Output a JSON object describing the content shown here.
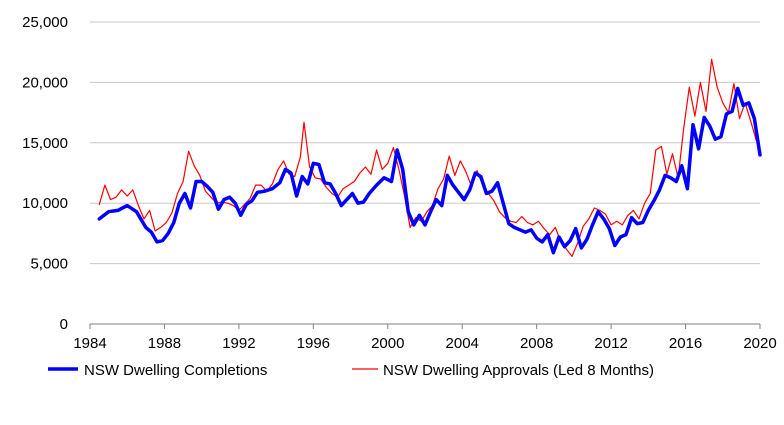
{
  "chart_data": {
    "type": "line",
    "title": "",
    "xlabel": "",
    "ylabel": "",
    "xlim": [
      1984,
      2020
    ],
    "ylim": [
      0,
      25000
    ],
    "x_ticks": [
      "1984",
      "1988",
      "1992",
      "1996",
      "2000",
      "2004",
      "2008",
      "2012",
      "2016",
      "2020"
    ],
    "y_ticks": [
      "0",
      "5,000",
      "10,000",
      "15,000",
      "20,000",
      "25,000"
    ],
    "grid": "horizontal",
    "legend_position": "bottom",
    "series": [
      {
        "name": "NSW Dwelling Completions",
        "color": "#0000ff",
        "style": "thick",
        "x": [
          1984.5,
          1985.0,
          1985.5,
          1986.0,
          1986.5,
          1987.0,
          1987.3,
          1987.6,
          1987.9,
          1988.2,
          1988.5,
          1988.8,
          1989.1,
          1989.4,
          1989.7,
          1990.0,
          1990.3,
          1990.6,
          1990.9,
          1991.2,
          1991.5,
          1991.8,
          1992.1,
          1992.4,
          1992.7,
          1993.0,
          1993.4,
          1993.8,
          1994.2,
          1994.5,
          1994.8,
          1995.1,
          1995.4,
          1995.7,
          1996.0,
          1996.3,
          1996.6,
          1996.9,
          1997.2,
          1997.5,
          1997.8,
          1998.1,
          1998.4,
          1998.7,
          1999.0,
          1999.4,
          1999.8,
          2000.2,
          2000.5,
          2000.8,
          2001.1,
          2001.4,
          2001.7,
          2002.0,
          2002.3,
          2002.6,
          2002.9,
          2003.2,
          2003.5,
          2003.8,
          2004.1,
          2004.4,
          2004.7,
          2005.0,
          2005.3,
          2005.6,
          2005.9,
          2006.2,
          2006.5,
          2006.8,
          2007.1,
          2007.4,
          2007.7,
          2008.0,
          2008.3,
          2008.6,
          2008.9,
          2009.2,
          2009.5,
          2009.8,
          2010.1,
          2010.4,
          2010.7,
          2011.0,
          2011.3,
          2011.6,
          2011.9,
          2012.2,
          2012.5,
          2012.8,
          2013.1,
          2013.4,
          2013.7,
          2014.0,
          2014.3,
          2014.6,
          2014.9,
          2015.2,
          2015.5,
          2015.8,
          2016.1,
          2016.4,
          2016.7,
          2017.0,
          2017.3,
          2017.6,
          2017.9,
          2018.2,
          2018.5,
          2018.8,
          2019.1,
          2019.4,
          2019.7,
          2020.0
        ],
        "values": [
          8700,
          9300,
          9400,
          9800,
          9300,
          8000,
          7600,
          6800,
          6900,
          7500,
          8400,
          10000,
          10800,
          9600,
          11800,
          11800,
          11400,
          10900,
          9500,
          10300,
          10500,
          10000,
          9000,
          9900,
          10200,
          10900,
          11000,
          11200,
          11700,
          12800,
          12500,
          10600,
          12200,
          11600,
          13300,
          13200,
          11700,
          11600,
          10800,
          9800,
          10300,
          10800,
          10000,
          10100,
          10800,
          11500,
          12100,
          11800,
          14400,
          12800,
          9300,
          8200,
          9000,
          8200,
          9300,
          10300,
          9800,
          12300,
          11500,
          10900,
          10300,
          11100,
          12500,
          12200,
          10800,
          11000,
          11700,
          10000,
          8300,
          8000,
          7800,
          7600,
          7800,
          7100,
          6800,
          7400,
          5900,
          7200,
          6400,
          6900,
          7900,
          6300,
          7000,
          8200,
          9300,
          8700,
          7900,
          6500,
          7200,
          7400,
          8800,
          8300,
          8400,
          9400,
          10200,
          11100,
          12300,
          12100,
          11800,
          13100,
          11200,
          16500,
          14500,
          17100,
          16400,
          15300,
          15500,
          17400,
          17600,
          19500,
          18100,
          18300,
          17000,
          14000
        ]
      },
      {
        "name": "NSW Dwelling Approvals (Led 8 Months)",
        "color": "#ff0000",
        "style": "thin",
        "x": [
          1984.5,
          1984.8,
          1985.1,
          1985.4,
          1985.7,
          1986.0,
          1986.3,
          1986.6,
          1986.9,
          1987.2,
          1987.5,
          1987.8,
          1988.1,
          1988.4,
          1988.7,
          1989.0,
          1989.3,
          1989.6,
          1989.9,
          1990.2,
          1990.5,
          1990.8,
          1991.1,
          1991.4,
          1991.7,
          1992.0,
          1992.3,
          1992.6,
          1992.9,
          1993.2,
          1993.5,
          1993.8,
          1994.1,
          1994.4,
          1994.7,
          1995.0,
          1995.3,
          1995.5,
          1995.8,
          1996.1,
          1996.4,
          1996.7,
          1997.0,
          1997.3,
          1997.6,
          1997.9,
          1998.2,
          1998.5,
          1998.8,
          1999.1,
          1999.4,
          1999.7,
          2000.0,
          2000.3,
          2000.6,
          2000.9,
          2001.2,
          2001.5,
          2001.8,
          2002.1,
          2002.4,
          2002.7,
          2003.0,
          2003.3,
          2003.6,
          2003.9,
          2004.2,
          2004.5,
          2004.8,
          2005.1,
          2005.4,
          2005.7,
          2006.0,
          2006.3,
          2006.6,
          2006.9,
          2007.2,
          2007.5,
          2007.8,
          2008.1,
          2008.4,
          2008.7,
          2009.0,
          2009.3,
          2009.6,
          2009.9,
          2010.2,
          2010.5,
          2010.8,
          2011.1,
          2011.4,
          2011.7,
          2012.0,
          2012.3,
          2012.6,
          2012.9,
          2013.2,
          2013.5,
          2013.8,
          2014.1,
          2014.4,
          2014.7,
          2015.0,
          2015.3,
          2015.6,
          2015.9,
          2016.2,
          2016.5,
          2016.8,
          2017.1,
          2017.4,
          2017.7,
          2018.0,
          2018.3,
          2018.6,
          2018.9,
          2019.2,
          2019.5,
          2019.8
        ],
        "values": [
          9900,
          11500,
          10300,
          10500,
          11100,
          10600,
          11100,
          9800,
          8700,
          9400,
          7700,
          8000,
          8400,
          9200,
          10800,
          11800,
          14300,
          13100,
          12300,
          11000,
          10500,
          10000,
          10100,
          10000,
          9800,
          9400,
          9900,
          10400,
          11500,
          11500,
          11000,
          11600,
          12800,
          13500,
          12400,
          12200,
          13800,
          16700,
          13000,
          12100,
          12000,
          11300,
          10800,
          10500,
          11200,
          11500,
          11800,
          12500,
          13000,
          12400,
          14400,
          12800,
          13300,
          14600,
          12800,
          10600,
          8000,
          8800,
          8500,
          9300,
          9800,
          11200,
          12000,
          13900,
          12300,
          13500,
          12600,
          11400,
          12700,
          11500,
          10800,
          10200,
          9300,
          8800,
          8500,
          8400,
          8900,
          8400,
          8200,
          8500,
          7900,
          7400,
          8000,
          6800,
          6200,
          5600,
          6700,
          8100,
          8700,
          9600,
          9400,
          9100,
          8200,
          8500,
          8200,
          9000,
          9400,
          8700,
          10000,
          10800,
          14400,
          14700,
          12400,
          14100,
          12100,
          16200,
          19600,
          17200,
          20000,
          17600,
          21900,
          19600,
          18300,
          17500,
          19900,
          17000,
          18300,
          16800,
          15200
        ]
      }
    ]
  }
}
